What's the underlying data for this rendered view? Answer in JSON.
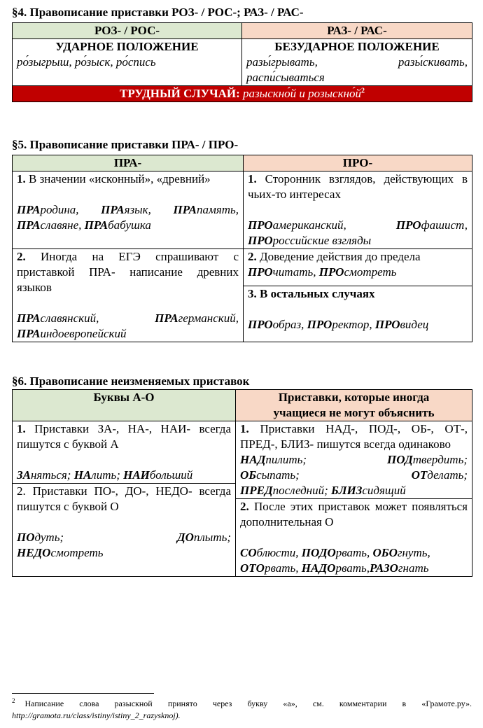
{
  "s4": {
    "title": "§4. Правописание приставки РОЗ- / РОС-; РАЗ- / РАС-",
    "col1_header": "РОЗ- / РОС-",
    "col2_header": "РАЗ- / РАС-",
    "col1_subhead": "УДАРНОЕ ПОЛОЖЕНИЕ",
    "col2_subhead": "БЕЗУДАРНОЕ ПОЛОЖЕНИЕ",
    "col1_examples": "ро́зыгрыш, ро́зыск, ро́спись",
    "col2_examples_line1": "разы́грывать, разы́скивать,",
    "col2_examples_line2": "распи́сываться",
    "hard_case_label": "ТРУДНЫЙ СЛУЧАЙ:",
    "hard_case_text": "разыскно́й и розыскно́й",
    "hard_case_ref": "2"
  },
  "s5": {
    "title": "§5. Правописание приставки ПРА- / ПРО-",
    "col1_header": "ПРА-",
    "col2_header": "ПРО-",
    "pra1_num": "1.",
    "pra1_text": "В значении «исконный», «древний»",
    "pra1_ex": [
      {
        "p": "ПРА",
        "r": "родина, "
      },
      {
        "p": "ПРА",
        "r": "язык, "
      },
      {
        "p": "ПРА",
        "r": "память,"
      },
      {
        "p": "ПРА",
        "r": "славяне, "
      },
      {
        "p": "ПРА",
        "r": "бабушка"
      }
    ],
    "pro1_num": "1.",
    "pro1_text": "Сторонник взглядов, действующих в чьих-то интересах",
    "pro1_ex": [
      {
        "p": "ПРО",
        "r": "американский, "
      },
      {
        "p": "ПРО",
        "r": "фашист,"
      },
      {
        "p": "ПРО",
        "r": "российские взгляды"
      }
    ],
    "pra2_num": "2.",
    "pra2_text": "Иногда на ЕГЭ спрашивают с приставкой ПРА- написание древних языков",
    "pra2_ex": [
      {
        "p": "ПРА",
        "r": "славянский, "
      },
      {
        "p": "ПРА",
        "r": "германский,"
      },
      {
        "p": "ПРА",
        "r": "индоевропейский"
      }
    ],
    "pro2_num": "2.",
    "pro2_text": "Доведение действия до предела",
    "pro2_ex": [
      {
        "p": "ПРО",
        "r": "читать, "
      },
      {
        "p": "ПРО",
        "r": "смотреть"
      }
    ],
    "pro3_num": "3.",
    "pro3_text": "В остальных случаях",
    "pro3_ex": [
      {
        "p": "ПРО",
        "r": "образ, "
      },
      {
        "p": "ПРО",
        "r": "ректор, "
      },
      {
        "p": "ПРО",
        "r": "видец"
      }
    ]
  },
  "s6": {
    "title": "§6. Правописание неизменяемых приставок",
    "col1_header": "Буквы А-О",
    "col2_header_line1": "Приставки, которые иногда",
    "col2_header_line2": "учащиеся не могут объяснить",
    "a1_num": "1.",
    "a1_text": "Приставки ЗА-, НА-, НАИ- всегда пишутся с буквой А",
    "a1_ex": [
      {
        "p": "ЗА",
        "r": "няться; "
      },
      {
        "p": "НА",
        "r": "лить; "
      },
      {
        "p": "НАИ",
        "r": "больший"
      }
    ],
    "b1_num": "1.",
    "b1_text": "Приставки НАД-, ПОД-, ОБ-, ОТ-, ПРЕД-, БЛИЗ- пишутся всегда одинаково",
    "b1_ex": [
      {
        "p": "НАД",
        "r": "пилить; "
      },
      {
        "p": "ПОД",
        "r": "твердить;"
      },
      {
        "p": "ОБ",
        "r": "сыпать; "
      },
      {
        "p": "ОТ",
        "r": "делать;"
      },
      {
        "p": "ПРЕД",
        "r": "последний; "
      },
      {
        "p": "БЛИЗ",
        "r": "сидящий"
      }
    ],
    "a2_num": "2.",
    "a2_text": "Приставки ПО-, ДО-, НЕДО- всегда пишутся с буквой О",
    "a2_ex": [
      {
        "p": "ПО",
        "r": "дуть; "
      },
      {
        "p": "ДО",
        "r": "плыть;"
      },
      {
        "p": "НЕДО",
        "r": "смотреть"
      }
    ],
    "b2_num": "2.",
    "b2_text": "После этих приставок может появляться дополнительная О",
    "b2_ex": [
      {
        "p": "СО",
        "r": "блюсти, "
      },
      {
        "p": "ПОДО",
        "r": "рвать, "
      },
      {
        "p": "ОБО",
        "r": "гнуть,"
      },
      {
        "p": "ОТО",
        "r": "рвать, "
      },
      {
        "p": "НАДО",
        "r": "рвать,"
      },
      {
        "p": "РАЗО",
        "r": "гнать"
      }
    ]
  },
  "footnote": {
    "ref": "2",
    "text": "Написание слова разыскной принято через букву «а», см. комментарии в «Грамоте.ру».",
    "url": "http://gramota.ru/class/istiny/istiny_2_razysknoj).",
    "url_lead": ""
  }
}
